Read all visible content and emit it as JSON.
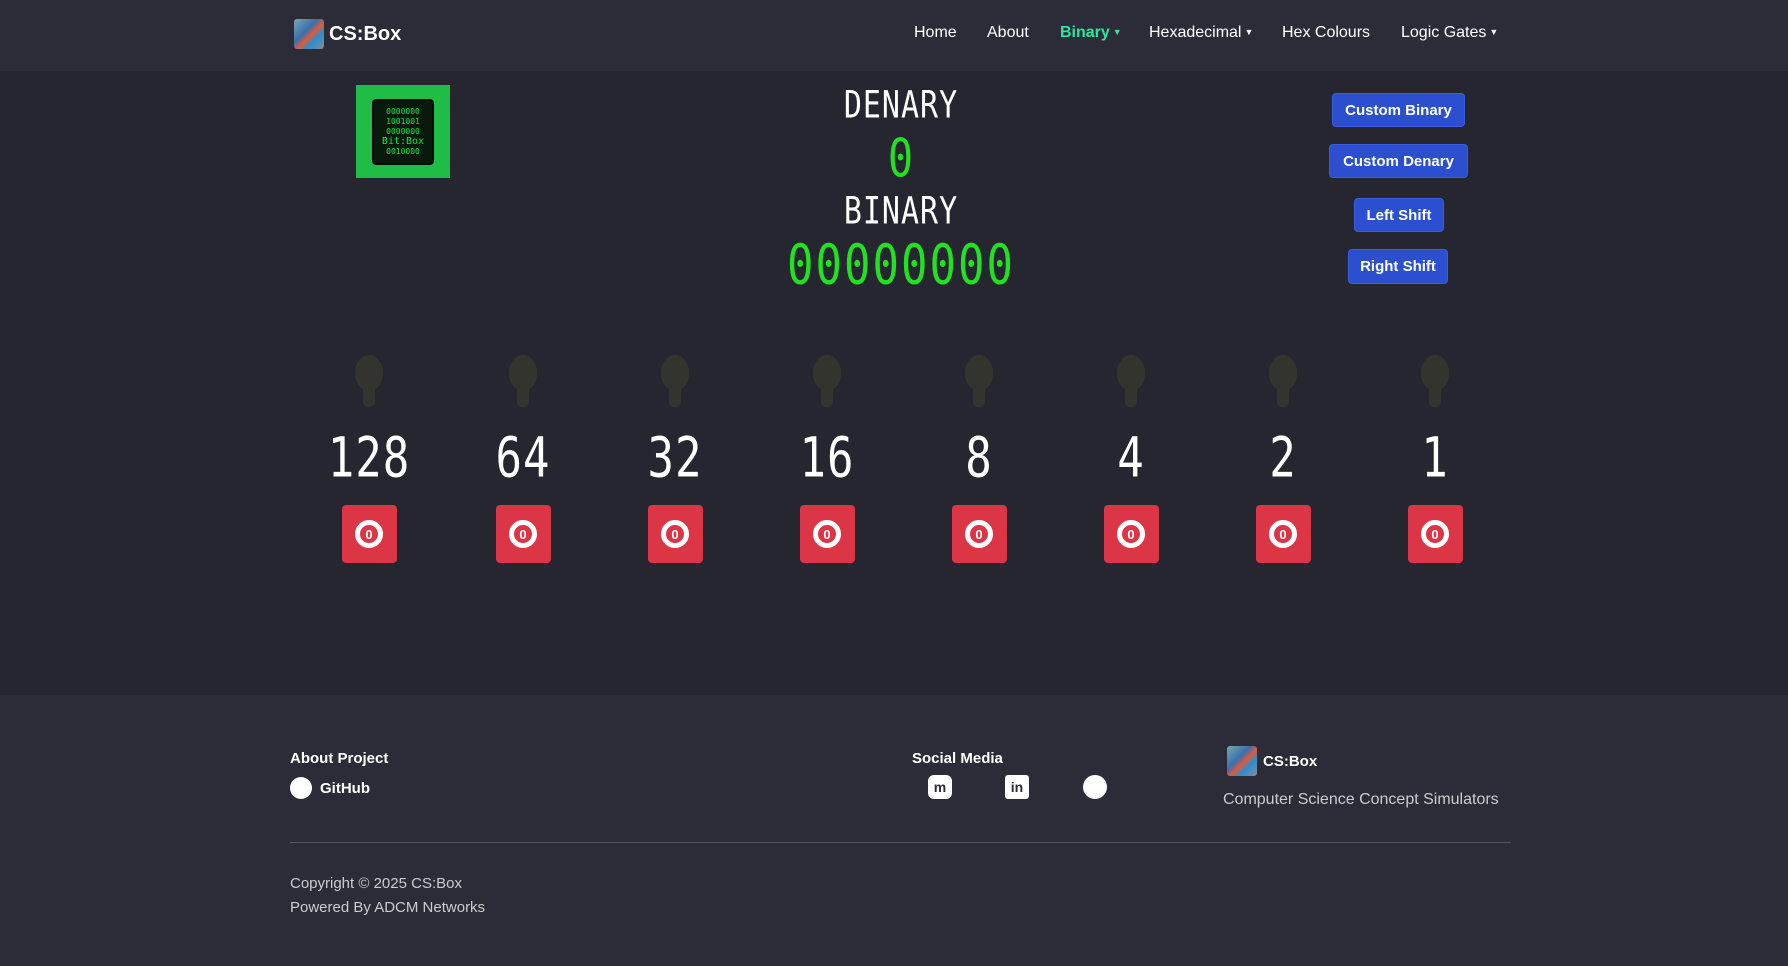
{
  "nav": {
    "brand": "CS:Box",
    "items": [
      {
        "label": "Home"
      },
      {
        "label": "About"
      },
      {
        "label": "Binary",
        "active": true,
        "dropdown": true
      },
      {
        "label": "Hexadecimal",
        "dropdown": true
      },
      {
        "label": "Hex Colours"
      },
      {
        "label": "Logic Gates",
        "dropdown": true
      }
    ]
  },
  "colors": {
    "active_nav": "#2ee59d",
    "display_green": "#22e022",
    "toggle_red": "#dc3545",
    "button_blue": "#2c4fd0"
  },
  "logo": {
    "lines": [
      "0000000",
      "1001001",
      "0000000",
      "Bit:Box",
      "0010000"
    ]
  },
  "display": {
    "denary_label": "DENARY",
    "denary_value": "0",
    "binary_label": "BINARY",
    "binary_value": "00000000"
  },
  "actions": {
    "custom_binary": "Custom Binary",
    "custom_denary": "Custom Denary",
    "left_shift": "Left Shift",
    "right_shift": "Right Shift"
  },
  "bits": [
    {
      "place": "128",
      "state": "0",
      "on": false
    },
    {
      "place": "64",
      "state": "0",
      "on": false
    },
    {
      "place": "32",
      "state": "0",
      "on": false
    },
    {
      "place": "16",
      "state": "0",
      "on": false
    },
    {
      "place": "8",
      "state": "0",
      "on": false
    },
    {
      "place": "4",
      "state": "0",
      "on": false
    },
    {
      "place": "2",
      "state": "0",
      "on": false
    },
    {
      "place": "1",
      "state": "0",
      "on": false
    }
  ],
  "footer": {
    "about_heading": "About Project",
    "github": "GitHub",
    "social_heading": "Social Media",
    "social_icons": [
      "mastodon-icon",
      "linkedin-icon",
      "github-icon"
    ],
    "brand": "CS:Box",
    "tagline": "Computer Science Concept Simulators",
    "copyright": "Copyright © 2025 CS:Box",
    "powered": "Powered By ADCM Networks"
  }
}
